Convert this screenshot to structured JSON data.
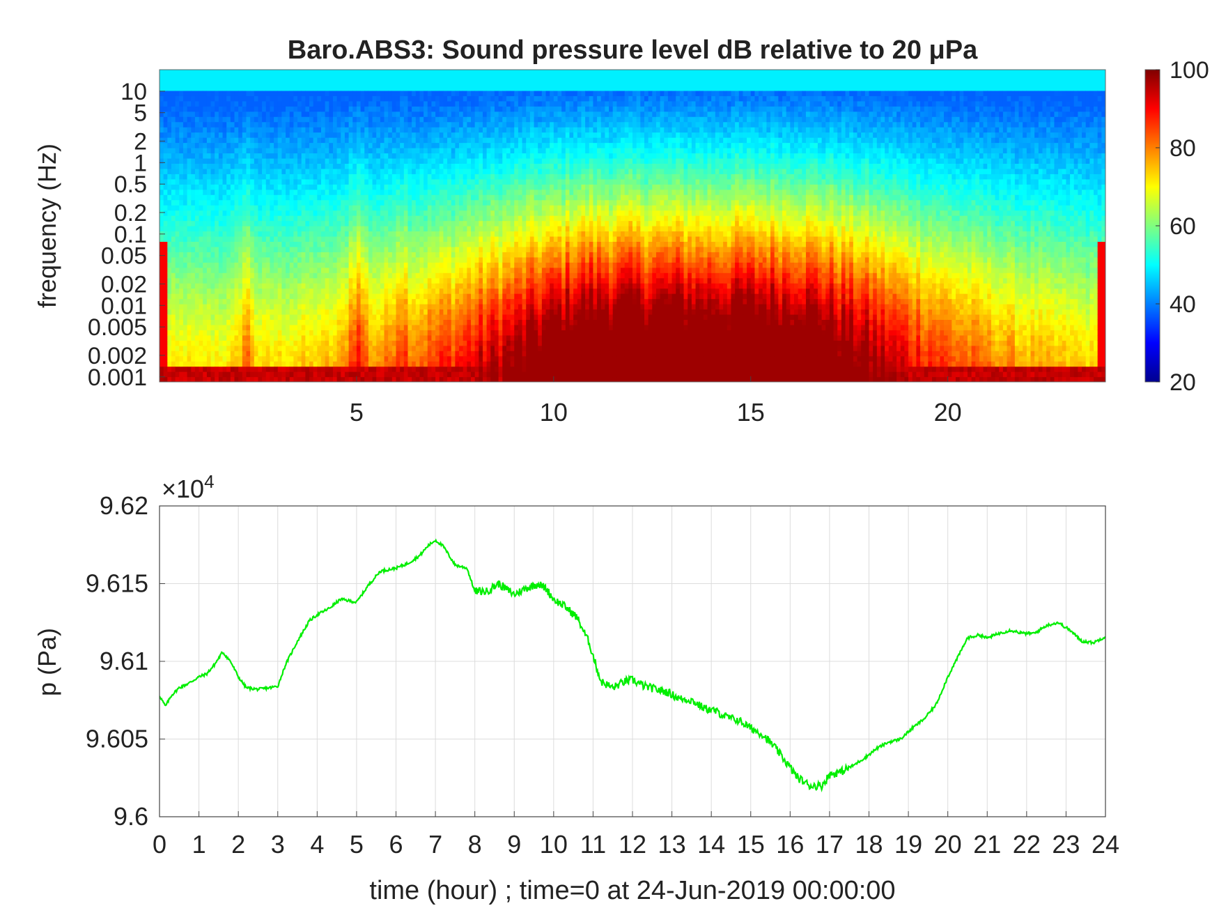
{
  "chart_data": [
    {
      "type": "heatmap",
      "title": "Baro.ABS3: Sound pressure level dB relative to 20 μPa",
      "xlabel": "",
      "ylabel": "frequency (Hz)",
      "x_ticks": [
        "5",
        "10",
        "15",
        "20"
      ],
      "x_tick_values": [
        5,
        10,
        15,
        20
      ],
      "xlim": [
        0,
        24
      ],
      "y_scale": "log",
      "y_ticks": [
        "10",
        "5",
        "2",
        "1",
        "0.5",
        "0.2",
        "0.1",
        "0.05",
        "0.02",
        "0.01",
        "0.005",
        "0.002",
        "0.001"
      ],
      "y_tick_values": [
        10,
        5,
        2,
        1,
        0.5,
        0.2,
        0.1,
        0.05,
        0.02,
        0.01,
        0.005,
        0.002,
        0.001
      ],
      "ylim": [
        0.00085,
        20
      ],
      "colorbar": {
        "ticks": [
          "100",
          "80",
          "60",
          "40",
          "20"
        ],
        "tick_values": [
          100,
          80,
          60,
          40,
          20
        ],
        "range": [
          20,
          100
        ],
        "colormap": "jet"
      },
      "grid": false
    },
    {
      "type": "line",
      "xlabel": "time (hour) ; time=0 at 24-Jun-2019 00:00:00",
      "ylabel": "p (Pa)",
      "y_exponent_label": "×10",
      "y_exponent_power": "4",
      "x_ticks": [
        "0",
        "1",
        "2",
        "3",
        "4",
        "5",
        "6",
        "7",
        "8",
        "9",
        "10",
        "11",
        "12",
        "13",
        "14",
        "15",
        "16",
        "17",
        "18",
        "19",
        "20",
        "21",
        "22",
        "23",
        "24"
      ],
      "y_ticks": [
        "9.62",
        "9.615",
        "9.61",
        "9.605",
        "9.6"
      ],
      "xlim": [
        0,
        24
      ],
      "ylim": [
        96000,
        96200
      ],
      "grid": true,
      "color": "#00ee00",
      "series": [
        {
          "x": [
            0,
            0.15,
            0.3,
            0.5,
            0.75,
            1.0,
            1.2,
            1.4,
            1.6,
            1.8,
            2.0,
            2.2,
            2.5,
            2.8,
            3.0,
            3.2,
            3.5,
            3.8,
            4.0,
            4.3,
            4.6,
            5.0,
            5.3,
            5.6,
            6.0,
            6.3,
            6.6,
            6.8,
            7.0,
            7.2,
            7.5,
            7.8,
            8.0,
            8.3,
            8.6,
            9.0,
            9.3,
            9.6,
            9.8,
            10.0,
            10.3,
            10.6,
            10.9,
            11.2,
            11.5,
            11.8,
            12.0,
            12.3,
            12.6,
            12.9,
            13.2,
            13.5,
            13.8,
            14.1,
            14.4,
            14.7,
            15.0,
            15.3,
            15.6,
            15.9,
            16.2,
            16.5,
            16.8,
            17.0,
            17.3,
            17.6,
            17.9,
            18.2,
            18.5,
            18.8,
            19.1,
            19.4,
            19.7,
            20.0,
            20.3,
            20.5,
            20.8,
            21.0,
            21.3,
            21.6,
            21.9,
            22.2,
            22.5,
            22.8,
            23.1,
            23.4,
            23.7,
            24.0
          ],
          "y": [
            96078,
            96071,
            96078,
            96083,
            96086,
            96090,
            96092,
            96098,
            96106,
            96100,
            96090,
            96083,
            96082,
            96083,
            96084,
            96098,
            96113,
            96126,
            96130,
            96134,
            96140,
            96138,
            96149,
            96158,
            96160,
            96163,
            96168,
            96174,
            96178,
            96174,
            96162,
            96160,
            96145,
            96145,
            96150,
            96143,
            96147,
            96150,
            96147,
            96140,
            96135,
            96128,
            96112,
            96087,
            96083,
            96087,
            96088,
            96084,
            96082,
            96080,
            96076,
            96075,
            96070,
            96068,
            96064,
            96062,
            96057,
            96053,
            96045,
            96035,
            96025,
            96020,
            96020,
            96027,
            96029,
            96033,
            96038,
            96044,
            96048,
            96050,
            96057,
            96063,
            96072,
            96090,
            96105,
            96115,
            96117,
            96115,
            96118,
            96120,
            96118,
            96118,
            96123,
            96125,
            96120,
            96113,
            96112,
            96116
          ]
        }
      ]
    }
  ]
}
